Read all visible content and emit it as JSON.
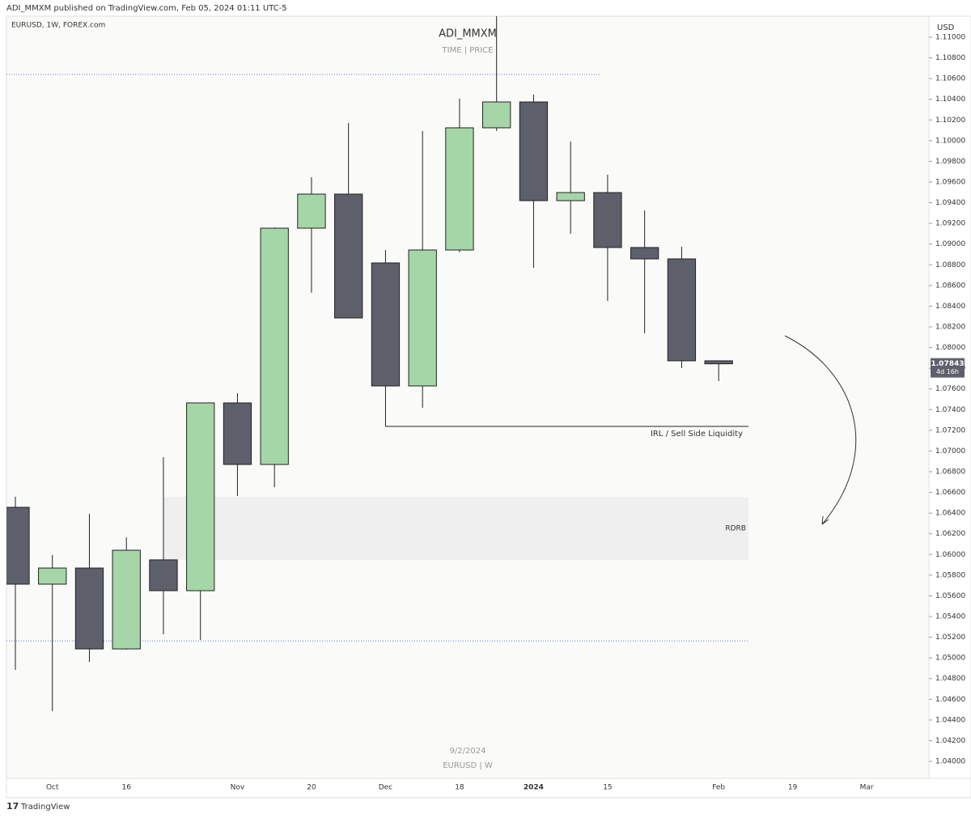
{
  "header": "ADI_MMXM published on TradingView.com, Feb 05, 2024 01:11 UTC-5",
  "symbol": "EURUSD, 1W, FOREX.com",
  "footer": "TradingView",
  "chart_data": {
    "type": "candlestick",
    "title": "ADI_MMXM",
    "subtitle": "TIME  |  PRICE",
    "watermark_date": "9/2/2024",
    "watermark_symbol": "EURUSD | W",
    "axis_unit": "USD",
    "countdown": "4d 16h",
    "categories": [
      null,
      "Oct",
      null,
      "16",
      null,
      null,
      "Nov",
      null,
      "20",
      null,
      "Dec",
      null,
      "18",
      null,
      "2024",
      null,
      "15",
      null,
      null,
      "Feb",
      null,
      "19",
      null,
      "Mar"
    ],
    "open": [
      1.06456,
      1.05713,
      1.05869,
      1.05087,
      1.05948,
      1.0565,
      1.07465,
      1.0687,
      1.09154,
      1.09483,
      1.08818,
      1.07629,
      1.08943,
      1.10124,
      1.10374,
      1.0942,
      1.09498,
      1.08967,
      1.08857,
      1.07872,
      null,
      null,
      null,
      null
    ],
    "high": [
      1.06558,
      1.05995,
      1.06393,
      1.06166,
      1.06941,
      1.07465,
      1.07559,
      1.09162,
      1.09647,
      1.10171,
      1.08943,
      1.10093,
      1.10406,
      1.113,
      1.10445,
      1.09991,
      1.0967,
      1.09326,
      1.08974,
      1.07872,
      null,
      null,
      null,
      null
    ],
    "low": [
      1.04884,
      1.04485,
      1.04962,
      1.05079,
      1.05228,
      1.05173,
      1.06565,
      1.06651,
      1.08529,
      1.08286,
      1.07238,
      1.07418,
      1.0892,
      1.10093,
      1.08771,
      1.091,
      1.0845,
      1.08137,
      1.07801,
      1.07676,
      null,
      null,
      null,
      null
    ],
    "close": [
      1.05713,
      1.05869,
      1.05087,
      1.06041,
      1.0565,
      1.07465,
      1.0687,
      1.09154,
      1.09483,
      1.08286,
      1.07629,
      1.08943,
      1.10124,
      1.10374,
      1.0942,
      1.09498,
      1.08967,
      1.08857,
      1.07872,
      1.07843,
      null,
      null,
      null,
      null
    ],
    "up_color": "#a5d6a7",
    "down_color": "#5d606b",
    "xlim": [
      -0.24,
      24.68
    ],
    "ylim": [
      1.03836,
      1.11203
    ],
    "yticks": [
      {
        "value": 1.04,
        "label": "1.04000"
      },
      {
        "value": 1.042,
        "label": "1.04200"
      },
      {
        "value": 1.044,
        "label": "1.04400"
      },
      {
        "value": 1.046,
        "label": "1.04600"
      },
      {
        "value": 1.048,
        "label": "1.04800"
      },
      {
        "value": 1.05,
        "label": "1.05000"
      },
      {
        "value": 1.052,
        "label": "1.05200"
      },
      {
        "value": 1.054,
        "label": "1.05400"
      },
      {
        "value": 1.056,
        "label": "1.05600"
      },
      {
        "value": 1.058,
        "label": "1.05800"
      },
      {
        "value": 1.06,
        "label": "1.06000"
      },
      {
        "value": 1.062,
        "label": "1.06200"
      },
      {
        "value": 1.064,
        "label": "1.06400"
      },
      {
        "value": 1.066,
        "label": "1.06600"
      },
      {
        "value": 1.068,
        "label": "1.06800"
      },
      {
        "value": 1.07,
        "label": "1.07000"
      },
      {
        "value": 1.072,
        "label": "1.07200"
      },
      {
        "value": 1.074,
        "label": "1.07400"
      },
      {
        "value": 1.076,
        "label": "1.07600"
      },
      {
        "value": 1.078,
        "label": "1.07800"
      },
      {
        "value": 1.08,
        "label": "1.08000"
      },
      {
        "value": 1.082,
        "label": "1.08200"
      },
      {
        "value": 1.084,
        "label": "1.08400"
      },
      {
        "value": 1.086,
        "label": "1.08600"
      },
      {
        "value": 1.088,
        "label": "1.08800"
      },
      {
        "value": 1.09,
        "label": "1.09000"
      },
      {
        "value": 1.092,
        "label": "1.09200"
      },
      {
        "value": 1.094,
        "label": "1.09400"
      },
      {
        "value": 1.096,
        "label": "1.09600"
      },
      {
        "value": 1.098,
        "label": "1.09800"
      },
      {
        "value": 1.1,
        "label": "1.10000"
      },
      {
        "value": 1.102,
        "label": "1.10200"
      },
      {
        "value": 1.104,
        "label": "1.10400"
      },
      {
        "value": 1.106,
        "label": "1.10600"
      },
      {
        "value": 1.108,
        "label": "1.10800"
      },
      {
        "value": 1.11,
        "label": "1.11000"
      }
    ],
    "annotations": [
      {
        "text": "IRL / Sell Side Liquidity",
        "value": 1.07238
      }
    ],
    "zones": [
      {
        "label": "RDRB",
        "top": 1.06558,
        "bottom": 1.05948
      }
    ],
    "levels": [
      1.1064,
      1.05165
    ]
  }
}
